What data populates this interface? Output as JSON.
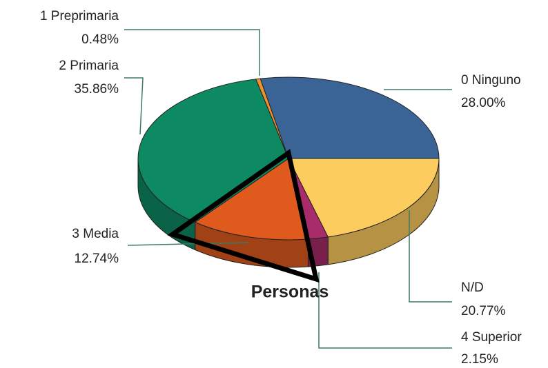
{
  "chart_data": {
    "type": "pie",
    "title": "Personas",
    "categories": [
      "0 Ninguno",
      "N/D",
      "4 Superior",
      "3 Media",
      "2 Primaria",
      "1 Preprimaria"
    ],
    "values": [
      28.0,
      20.77,
      2.15,
      12.74,
      35.86,
      0.48
    ],
    "value_labels": [
      "28.00%",
      "20.77%",
      "2.15%",
      "12.74%",
      "35.86%",
      "0.48%"
    ],
    "colors": [
      "#3a6496",
      "#fdcc5f",
      "#a82b6a",
      "#e05a1e",
      "#0e8a63",
      "#f09030"
    ]
  }
}
